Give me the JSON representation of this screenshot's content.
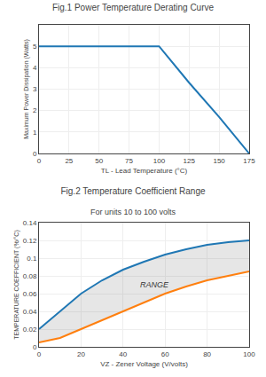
{
  "chart_data": [
    {
      "type": "line",
      "title": "Fig.1 Power Temperature Derating Curve",
      "x_label": "TL - Lead Temperature (°C)",
      "y_label": "Maximum Power Dissipation (Watts)",
      "x": [
        0,
        25,
        75,
        100,
        125,
        150,
        175
      ],
      "series": [
        {
          "values": [
            5,
            5,
            5,
            5,
            3.3,
            1.7,
            0
          ]
        }
      ],
      "xlim": [
        0,
        175
      ],
      "xticks": [
        0,
        25,
        50,
        75,
        100,
        125,
        150,
        175
      ],
      "ylim": [
        0,
        6
      ],
      "yticks": [
        0,
        1,
        2,
        3,
        4,
        5
      ],
      "grid": true
    },
    {
      "type": "line",
      "title": "Fig.2 Temperature Coefficient Range",
      "subtitle": "For units 10 to 100 volts",
      "x_label": "VZ - Zener Voltage (V/volts)",
      "y_label": "TEMPERATURE COEFFICIENT (%/°C)",
      "x": [
        0,
        10,
        20,
        30,
        40,
        50,
        60,
        70,
        80,
        90,
        100
      ],
      "series": [
        {
          "values": [
            0.02,
            0.04,
            0.06,
            0.075,
            0.087,
            0.096,
            0.104,
            0.11,
            0.115,
            0.118,
            0.12
          ]
        },
        {
          "values": [
            0.005,
            0.01,
            0.02,
            0.03,
            0.04,
            0.05,
            0.06,
            0.068,
            0.075,
            0.08,
            0.085
          ]
        }
      ],
      "xlim": [
        0,
        100
      ],
      "xticks": [
        0,
        20,
        40,
        60,
        80,
        100
      ],
      "ylim": [
        0,
        0.14
      ],
      "yticks": [
        0,
        0.02,
        0.04,
        0.06,
        0.08,
        0.1,
        0.12,
        0.14
      ],
      "annotations": [
        {
          "text": "RANGE",
          "x": 55,
          "y": 0.07
        }
      ],
      "grid": true
    }
  ]
}
